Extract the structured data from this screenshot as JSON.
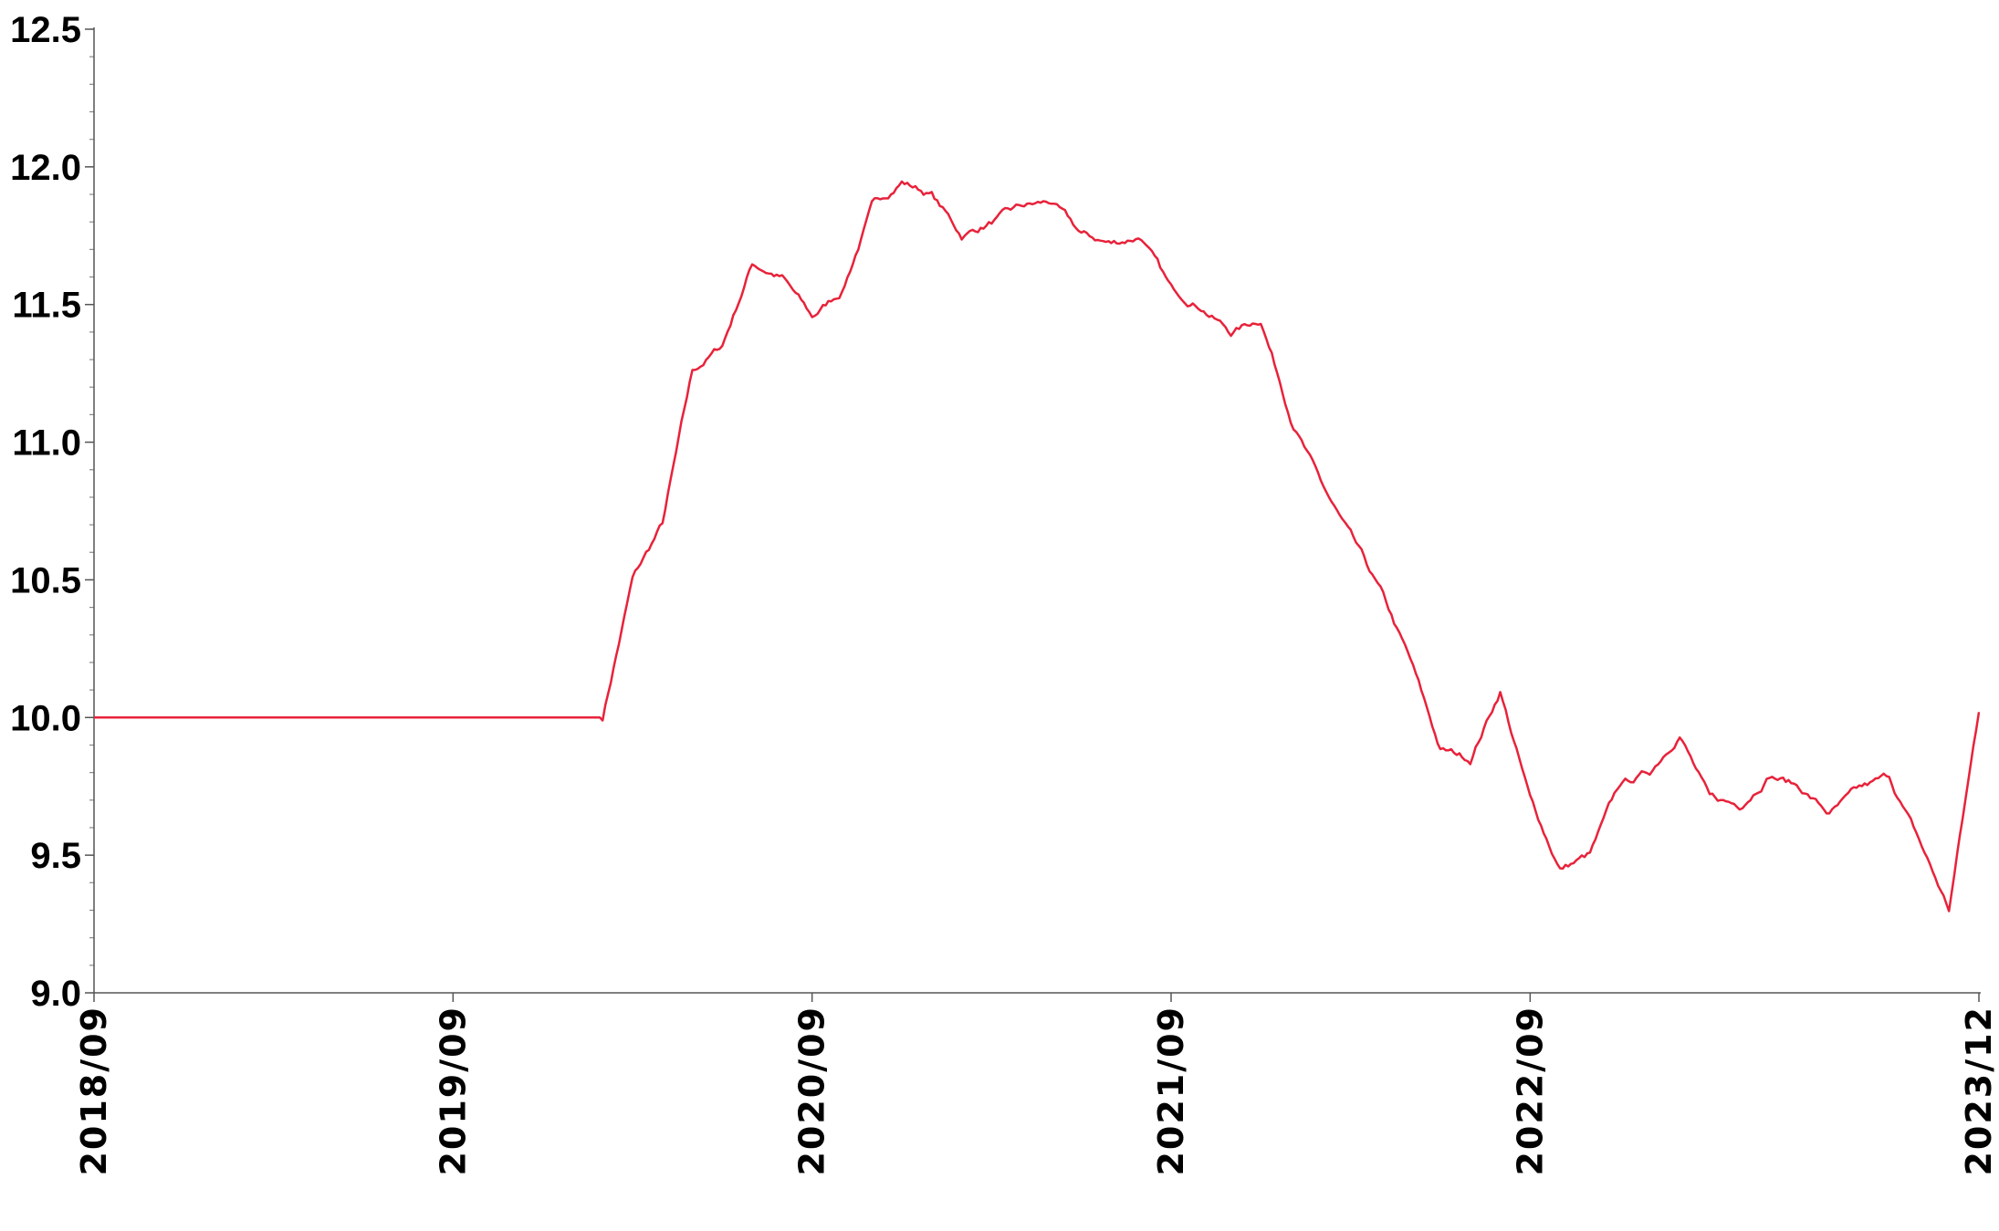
{
  "chart_data": {
    "type": "line",
    "title": "",
    "xlabel": "",
    "ylabel": "",
    "ylim": [
      9.0,
      12.5
    ],
    "xlim": [
      "2018-09",
      "2023-12"
    ],
    "yticks": [
      "9.0",
      "9.5",
      "10.0",
      "10.5",
      "11.0",
      "11.5",
      "12.0",
      "12.5"
    ],
    "xticks": [
      {
        "label": "2018/09",
        "date": "2018-09"
      },
      {
        "label": "2019/09",
        "date": "2019-09"
      },
      {
        "label": "2020/09",
        "date": "2020-09"
      },
      {
        "label": "2021/09",
        "date": "2021-09"
      },
      {
        "label": "2022/09",
        "date": "2022-09"
      },
      {
        "label": "2023/12",
        "date": "2023-12"
      }
    ],
    "grid": false,
    "line_color": "#e8223a",
    "series": [
      {
        "x": [
          "2018-09",
          "2018-12",
          "2019-03",
          "2019-06",
          "2019-09",
          "2019-12",
          "2020-02",
          "2020-03",
          "2020-04",
          "2020-05",
          "2020-06",
          "2020-07",
          "2020-08",
          "2020-09",
          "2020-10",
          "2020-11",
          "2020-12",
          "2021-01",
          "2021-02",
          "2021-03",
          "2021-04",
          "2021-05",
          "2021-06",
          "2021-07",
          "2021-08",
          "2021-09",
          "2021-10",
          "2021-11",
          "2021-12",
          "2022-01",
          "2022-02",
          "2022-03",
          "2022-04",
          "2022-05",
          "2022-06",
          "2022-07",
          "2022-08",
          "2022-09",
          "2022-10",
          "2022-11",
          "2022-12",
          "2023-01",
          "2023-02",
          "2023-03",
          "2023-04",
          "2023-05",
          "2023-06",
          "2023-07",
          "2023-08",
          "2023-09",
          "2023-10",
          "2023-11",
          "2023-12"
        ],
        "values": [
          10.0,
          10.0,
          10.0,
          10.0,
          10.0,
          10.0,
          10.0,
          10.5,
          10.7,
          11.25,
          11.35,
          11.65,
          11.6,
          11.45,
          11.55,
          11.85,
          11.95,
          11.9,
          11.75,
          11.8,
          11.85,
          11.87,
          11.75,
          11.72,
          11.75,
          11.55,
          11.5,
          11.4,
          11.45,
          11.1,
          10.85,
          10.65,
          10.45,
          10.2,
          9.88,
          9.85,
          10.1,
          9.7,
          9.45,
          9.5,
          9.75,
          9.8,
          9.95,
          9.7,
          9.68,
          9.8,
          9.75,
          9.65,
          9.73,
          9.78,
          9.55,
          9.3,
          10.02
        ]
      }
    ]
  }
}
